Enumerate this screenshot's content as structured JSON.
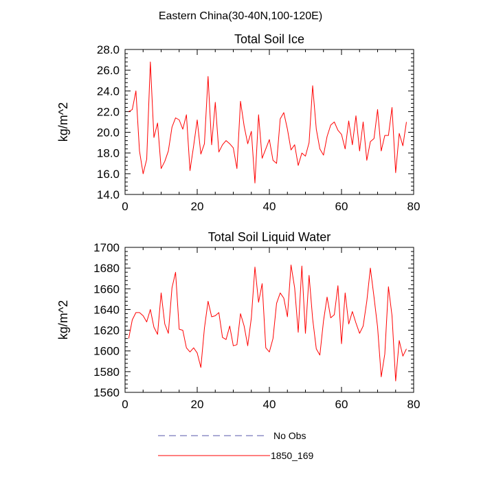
{
  "figure": {
    "title": "Eastern China(30-40N,100-120E)"
  },
  "legend": {
    "placement": "bottom-center",
    "entries": [
      {
        "label": "No Obs",
        "color": "#5555aa",
        "dashed": true
      },
      {
        "label": "1850_169",
        "color": "#ff0000",
        "dashed": false
      }
    ]
  },
  "chart_data": [
    {
      "type": "line",
      "title": "Total Soil Ice",
      "xlabel": "",
      "ylabel": "kg/m^2",
      "xlim": [
        0,
        80
      ],
      "ylim": [
        14,
        28
      ],
      "xticks": [
        "0",
        "20",
        "40",
        "60",
        "80"
      ],
      "yticks": [
        "14.0",
        "16.0",
        "18.0",
        "20.0",
        "22.0",
        "24.0",
        "26.0",
        "28.0"
      ],
      "grid": false,
      "series": [
        {
          "name": "1850_169",
          "color": "#ff0000",
          "x": [
            1,
            2,
            3,
            4,
            5,
            6,
            7,
            8,
            9,
            10,
            11,
            12,
            13,
            14,
            15,
            16,
            17,
            18,
            19,
            20,
            21,
            22,
            23,
            24,
            25,
            26,
            27,
            28,
            29,
            30,
            31,
            32,
            33,
            34,
            35,
            36,
            37,
            38,
            39,
            40,
            41,
            42,
            43,
            44,
            45,
            46,
            47,
            48,
            49,
            50,
            51,
            52,
            53,
            54,
            55,
            56,
            57,
            58,
            59,
            60,
            61,
            62,
            63,
            64,
            65,
            66,
            67,
            68,
            69,
            70,
            71,
            72,
            73,
            74,
            75,
            76,
            77,
            78
          ],
          "values": [
            22.0,
            22.2,
            24.0,
            18.2,
            16.0,
            17.4,
            26.8,
            19.5,
            20.9,
            16.5,
            17.2,
            18.2,
            20.5,
            21.4,
            21.2,
            20.3,
            21.7,
            16.3,
            18.7,
            21.2,
            17.9,
            18.9,
            25.4,
            18.8,
            22.9,
            18.1,
            18.8,
            19.2,
            18.9,
            18.5,
            16.5,
            23.0,
            20.6,
            18.9,
            20.1,
            15.1,
            21.7,
            17.5,
            18.4,
            19.3,
            17.3,
            17.0,
            21.3,
            21.9,
            20.3,
            18.3,
            18.8,
            16.8,
            18.0,
            17.7,
            19.0,
            24.5,
            20.3,
            18.4,
            17.8,
            19.6,
            20.7,
            21.0,
            20.2,
            19.8,
            18.4,
            21.1,
            18.8,
            21.6,
            18.2,
            21.0,
            17.3,
            19.1,
            19.4,
            22.2,
            18.2,
            19.7,
            19.7,
            22.4,
            16.1,
            19.9,
            18.7,
            21.0
          ]
        }
      ]
    },
    {
      "type": "line",
      "title": "Total Soil Liquid Water",
      "xlabel": "",
      "ylabel": "kg/m^2",
      "xlim": [
        0,
        80
      ],
      "ylim": [
        1560,
        1700
      ],
      "xticks": [
        "0",
        "20",
        "40",
        "60",
        "80"
      ],
      "yticks": [
        "1560",
        "1580",
        "1600",
        "1620",
        "1640",
        "1660",
        "1680",
        "1700"
      ],
      "grid": false,
      "series": [
        {
          "name": "1850_169",
          "color": "#ff0000",
          "x": [
            1,
            2,
            3,
            4,
            5,
            6,
            7,
            8,
            9,
            10,
            11,
            12,
            13,
            14,
            15,
            16,
            17,
            18,
            19,
            20,
            21,
            22,
            23,
            24,
            25,
            26,
            27,
            28,
            29,
            30,
            31,
            32,
            33,
            34,
            35,
            36,
            37,
            38,
            39,
            40,
            41,
            42,
            43,
            44,
            45,
            46,
            47,
            48,
            49,
            50,
            51,
            52,
            53,
            54,
            55,
            56,
            57,
            58,
            59,
            60,
            61,
            62,
            63,
            64,
            65,
            66,
            67,
            68,
            69,
            70,
            71,
            72,
            73,
            74,
            75,
            76,
            77,
            78
          ],
          "values": [
            1612,
            1630,
            1637,
            1637,
            1634,
            1628,
            1640,
            1623,
            1616,
            1656,
            1626,
            1617,
            1661,
            1676,
            1621,
            1620,
            1603,
            1599,
            1603,
            1598,
            1584,
            1622,
            1648,
            1633,
            1634,
            1637,
            1613,
            1611,
            1624,
            1605,
            1606,
            1636,
            1624,
            1605,
            1632,
            1681,
            1647,
            1665,
            1603,
            1599,
            1612,
            1646,
            1656,
            1651,
            1633,
            1683,
            1661,
            1618,
            1682,
            1617,
            1673,
            1631,
            1602,
            1596,
            1629,
            1652,
            1632,
            1635,
            1663,
            1607,
            1656,
            1626,
            1638,
            1627,
            1617,
            1624,
            1648,
            1680,
            1652,
            1623,
            1575,
            1597,
            1662,
            1634,
            1571,
            1610,
            1595,
            1602
          ]
        }
      ]
    }
  ]
}
